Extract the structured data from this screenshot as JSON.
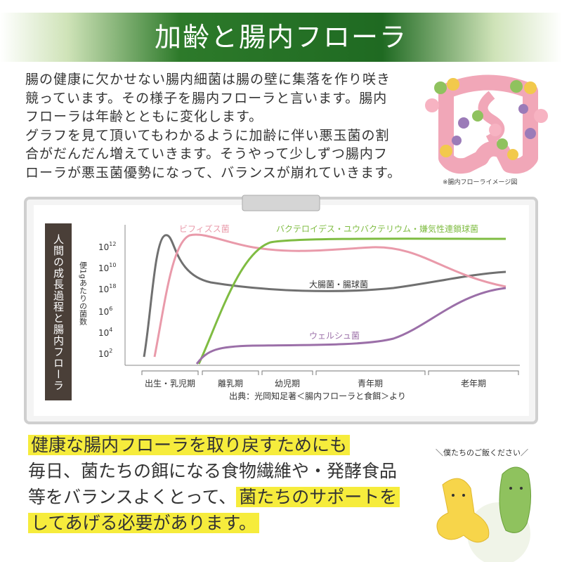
{
  "header": {
    "title": "加齢と腸内フローラ"
  },
  "intro": {
    "lines": [
      "腸の健康に欠かせない腸内細菌は腸の壁に集落を作り咲き",
      "競っています。その様子を腸内フローラと言います。腸内",
      "フローラは年齢とともに変化します。",
      "グラフを見て頂いてもわかるように加齢に伴い悪玉菌の割",
      "合がだんだん増えていきます。そうやって少しずつ腸内フ",
      "ローラが悪玉菌優勢になって、バランスが崩れていきます。"
    ],
    "image_caption": "※腸内フローライメージ図"
  },
  "figure": {
    "side_title": "人間の成長過程と腸内フローラ",
    "y_axis_title": "便1gあたりの菌数",
    "y_labels": [
      {
        "base": "10",
        "exp": "12"
      },
      {
        "base": "10",
        "exp": "10"
      },
      {
        "base": "10",
        "exp": "18"
      },
      {
        "base": "10",
        "exp": "6"
      },
      {
        "base": "10",
        "exp": "4"
      },
      {
        "base": "10",
        "exp": "2"
      }
    ],
    "curve_labels": [
      "ビフィズス菌",
      "バクテロイデス・ユウバクテリウム・嫌気性連鎖球菌",
      "大腸菌・腸球菌",
      "ウェルシュ菌"
    ],
    "stages": [
      "出生・乳児期",
      "離乳期",
      "幼児期",
      "青年期",
      "老年期"
    ],
    "source": "出典：光岡知足著＜腸内フローラと食餌＞より"
  },
  "message": {
    "line1": "健康な腸内フローラを取り戻すためにも",
    "line2": "毎日、菌たちの餌になる食物繊維や・発酵食品",
    "line3_plain": "等をバランスよくとって、",
    "line3_highlight": "菌たちのサポートを",
    "line4": "してあげる必要があります。"
  },
  "speech": "＼僕たちのご飯ください／"
}
